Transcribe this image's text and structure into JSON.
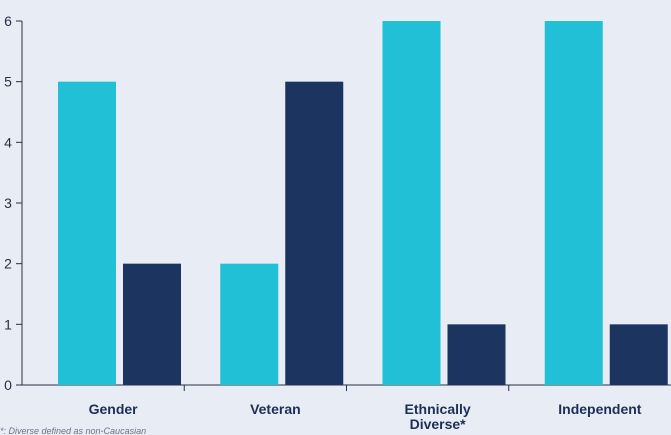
{
  "chart_data": {
    "type": "bar",
    "categories": [
      "Gender",
      "Veteran",
      "Ethnically Diverse*",
      "Independent"
    ],
    "series": [
      {
        "values": [
          5,
          2,
          6,
          6
        ],
        "color": "#22c0d6"
      },
      {
        "values": [
          2,
          5,
          1,
          1
        ],
        "color": "#1c3460"
      }
    ],
    "ylim": [
      0,
      6
    ],
    "yticks": [
      0,
      1,
      2,
      3,
      4,
      5,
      6
    ],
    "grid": false,
    "title": "",
    "xlabel": "",
    "ylabel": ""
  },
  "footnote": "*: Diverse defined as non-Caucasian"
}
